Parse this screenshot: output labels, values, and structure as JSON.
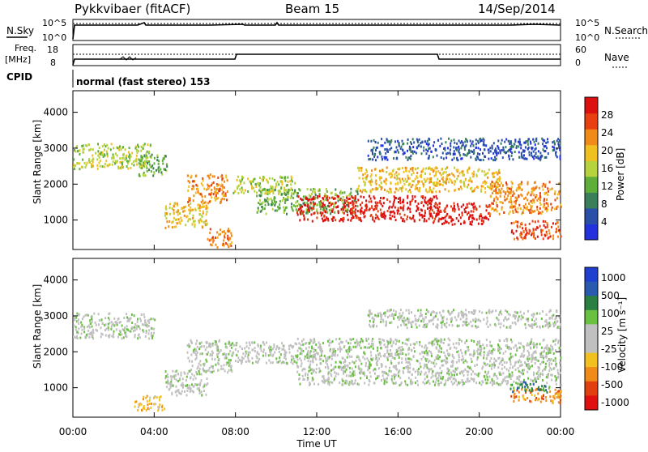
{
  "header": {
    "radar": "Pykkvibaer (fitACF)",
    "beam": "Beam 15",
    "date": "14/Sep/2014"
  },
  "sky_panel": {
    "left_label": "N.Sky",
    "right_label": "N.Search",
    "left_ticks": [
      "10^5",
      "10^0"
    ],
    "right_ticks": [
      "10^5",
      "10^0"
    ]
  },
  "freq_panel": {
    "left_label_1": "Freq.",
    "left_label_2": "[MHz]",
    "right_label": "Nave",
    "left_ticks": [
      "18",
      "8"
    ],
    "right_ticks": [
      "60",
      "0"
    ]
  },
  "cpid": {
    "label": "CPID",
    "text": "normal (fast stereo) 153"
  },
  "colors": {
    "power_scale": [
      "#2233dd",
      "#2a4fa8",
      "#3a7f5a",
      "#5fae3a",
      "#b6d23c",
      "#f0c020",
      "#f08a18",
      "#e84010",
      "#dd1010"
    ],
    "velocity_scale": [
      "#1e3fd0",
      "#2a5ab0",
      "#2a8040",
      "#6ac040",
      "#c0c0c0",
      "#c0c0c0",
      "#f2c020",
      "#f08a18",
      "#e04010",
      "#e01010"
    ],
    "ground_scatter": "#c0c0c0"
  },
  "chart_data": [
    {
      "type": "heatmap",
      "name": "power",
      "ylabel": "Slant Range [km]",
      "yticks": [
        1000,
        2000,
        3000,
        4000
      ],
      "ylim": [
        180,
        4600
      ],
      "xlim_hours": [
        0,
        24
      ],
      "colorbar_label": "Power [dB]",
      "colorbar_ticks": [
        "4",
        "8",
        "12",
        "16",
        "20",
        "24",
        "28"
      ],
      "bands": [
        {
          "t": [
            0,
            3.8
          ],
          "r": [
            2450,
            3150
          ],
          "level": 4
        },
        {
          "t": [
            3.2,
            4.6
          ],
          "r": [
            2250,
            2850
          ],
          "level": 3
        },
        {
          "t": [
            5.6,
            7.6
          ],
          "r": [
            1500,
            2300
          ],
          "level": 6
        },
        {
          "t": [
            4.5,
            6.6
          ],
          "r": [
            800,
            1500
          ],
          "level": 5
        },
        {
          "t": [
            6.6,
            7.8
          ],
          "r": [
            250,
            800
          ],
          "level": 6
        },
        {
          "t": [
            7.8,
            11.0
          ],
          "r": [
            1750,
            2250
          ],
          "level": 4
        },
        {
          "t": [
            9.0,
            14.0
          ],
          "r": [
            1200,
            1900
          ],
          "level": 3
        },
        {
          "t": [
            11.0,
            18.0
          ],
          "r": [
            1000,
            1700
          ],
          "level": 8
        },
        {
          "t": [
            14.0,
            21.0
          ],
          "r": [
            1800,
            2500
          ],
          "level": 5
        },
        {
          "t": [
            17.5,
            20.5
          ],
          "r": [
            900,
            1500
          ],
          "level": 8
        },
        {
          "t": [
            20.5,
            24.0
          ],
          "r": [
            1200,
            2100
          ],
          "level": 6
        },
        {
          "t": [
            21.5,
            24.0
          ],
          "r": [
            500,
            1000
          ],
          "level": 7
        },
        {
          "t": [
            14.5,
            24.0
          ],
          "r": [
            2700,
            3300
          ],
          "level": 1
        }
      ]
    },
    {
      "type": "heatmap",
      "name": "velocity",
      "ylabel": "Slant Range [km]",
      "yticks": [
        1000,
        2000,
        3000,
        4000
      ],
      "ylim": [
        180,
        4600
      ],
      "xlim_hours": [
        0,
        24
      ],
      "xlabel": "Time UT",
      "xticks": [
        "00:00",
        "04:00",
        "08:00",
        "12:00",
        "16:00",
        "20:00",
        "00:00"
      ],
      "colorbar_label": "Velocity [m s⁻¹]",
      "colorbar_ticks": [
        "1000",
        "500",
        "100",
        "25",
        "-25",
        "-100",
        "-500",
        "-1000"
      ],
      "bands": [
        {
          "t": [
            0,
            4.0
          ],
          "r": [
            2400,
            3100
          ],
          "level": 4
        },
        {
          "t": [
            5.6,
            7.8
          ],
          "r": [
            1450,
            2350
          ],
          "level": 4
        },
        {
          "t": [
            4.5,
            6.6
          ],
          "r": [
            800,
            1500
          ],
          "level": 4
        },
        {
          "t": [
            7.8,
            11.0
          ],
          "r": [
            1700,
            2300
          ],
          "level": 4
        },
        {
          "t": [
            11.0,
            24.0
          ],
          "r": [
            1100,
            2400
          ],
          "level": 4
        },
        {
          "t": [
            14.5,
            24.0
          ],
          "r": [
            2700,
            3200
          ],
          "level": 4
        },
        {
          "t": [
            3.0,
            4.5
          ],
          "r": [
            400,
            800
          ],
          "level": 6
        },
        {
          "t": [
            21.5,
            24.0
          ],
          "r": [
            600,
            1000
          ],
          "level": 7
        },
        {
          "t": [
            21.5,
            23.5
          ],
          "r": [
            900,
            1200
          ],
          "level": 2
        }
      ]
    }
  ]
}
